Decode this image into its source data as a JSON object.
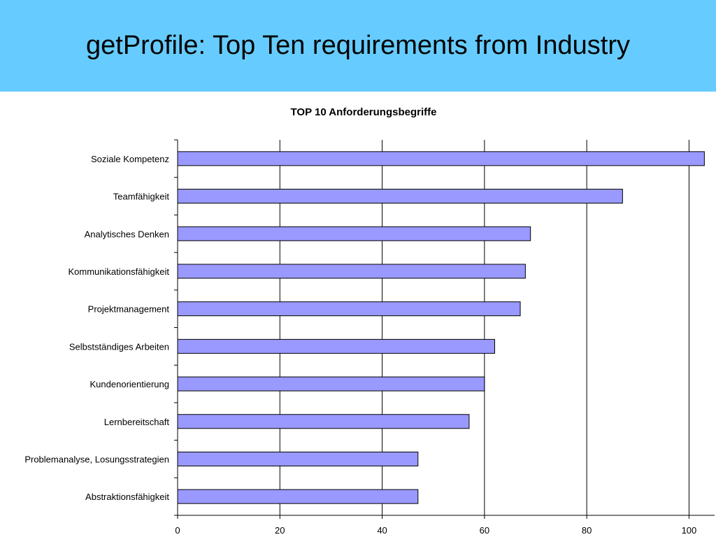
{
  "header": {
    "title": "getProfile: Top Ten requirements from Industry"
  },
  "chart_data": {
    "type": "bar",
    "orientation": "horizontal",
    "title": "TOP 10 Anforderungsbegriffe",
    "xlabel": "",
    "ylabel": "",
    "categories": [
      "Soziale Kompetenz",
      "Teamfähigkeit",
      "Analytisches Denken",
      "Kommunikationsfähigkeit",
      "Projektmanagement",
      "Selbstständiges Arbeiten",
      "Kundenorientierung",
      "Lernbereitschaft",
      "Problemanalyse, Losungsstrategien",
      "Abstraktionsfähigkeit"
    ],
    "values": [
      103,
      87,
      69,
      68,
      67,
      62,
      60,
      57,
      47,
      47
    ],
    "xlim": [
      0,
      105
    ],
    "x_ticks": [
      0,
      20,
      40,
      60,
      80,
      100
    ],
    "grid": true,
    "bar_color": "#9999ff"
  }
}
